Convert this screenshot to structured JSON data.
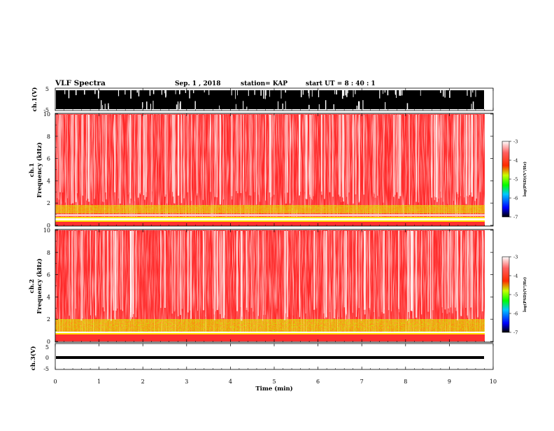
{
  "header": {
    "title": "VLF Spectra",
    "date": "Sep. 1 , 2018",
    "station": "station= KAP",
    "start": "start  UT =   8 : 40 : 1"
  },
  "chart_data": [
    {
      "type": "line",
      "panel": "ch1-waveform",
      "ylabel": "ch.1(V)",
      "ylim": [
        -5,
        5
      ],
      "yticks": [
        "5",
        "-5"
      ],
      "xlim": [
        0,
        10
      ]
    },
    {
      "type": "heatmap",
      "panel": "ch1-spectrogram",
      "ylabel": "ch.1\nFrequency (kHz)",
      "ylim": [
        0,
        10
      ],
      "yticks": [
        "10",
        "8",
        "6",
        "4",
        "2",
        "0"
      ],
      "xlim": [
        0,
        10
      ],
      "data_end_min": 9.83,
      "colorbar": {
        "label": "log(PSD)(V²/Hz)",
        "range": [
          -7,
          -3
        ],
        "ticks": [
          "-3",
          "-4",
          "-5",
          "-6",
          "-7"
        ]
      }
    },
    {
      "type": "heatmap",
      "panel": "ch2-spectrogram",
      "ylabel": "ch.2\nFrequency (kHz)",
      "ylim": [
        0,
        10
      ],
      "yticks": [
        "10",
        "8",
        "6",
        "4",
        "2",
        "0"
      ],
      "xlim": [
        0,
        10
      ],
      "data_end_min": 9.83,
      "colorbar": {
        "label": "log(PSD)(V²/Hz)",
        "range": [
          -7,
          -3
        ],
        "ticks": [
          "-3",
          "-4",
          "-5",
          "-6",
          "-7"
        ]
      }
    },
    {
      "type": "line",
      "panel": "ch3-waveform",
      "ylabel": "ch.3(V)",
      "ylim": [
        -5,
        5
      ],
      "yticks": [
        "5",
        "0",
        "-5"
      ],
      "xlim": [
        0,
        10
      ],
      "xlabel": "Time (min)",
      "xticks": [
        "0",
        "1",
        "2",
        "3",
        "4",
        "5",
        "6",
        "7",
        "8",
        "9",
        "10"
      ]
    }
  ],
  "colors": {
    "colorbar_stops": [
      "#000000",
      "#0000ff",
      "#00c8ff",
      "#00ff00",
      "#c8ff00",
      "#ff2a00",
      "#ff5050",
      "#ffffff"
    ],
    "spectrogram_red": "#ff2a2a",
    "spectrogram_green": "#7cff00",
    "spectrogram_yellow": "#ffe600"
  }
}
